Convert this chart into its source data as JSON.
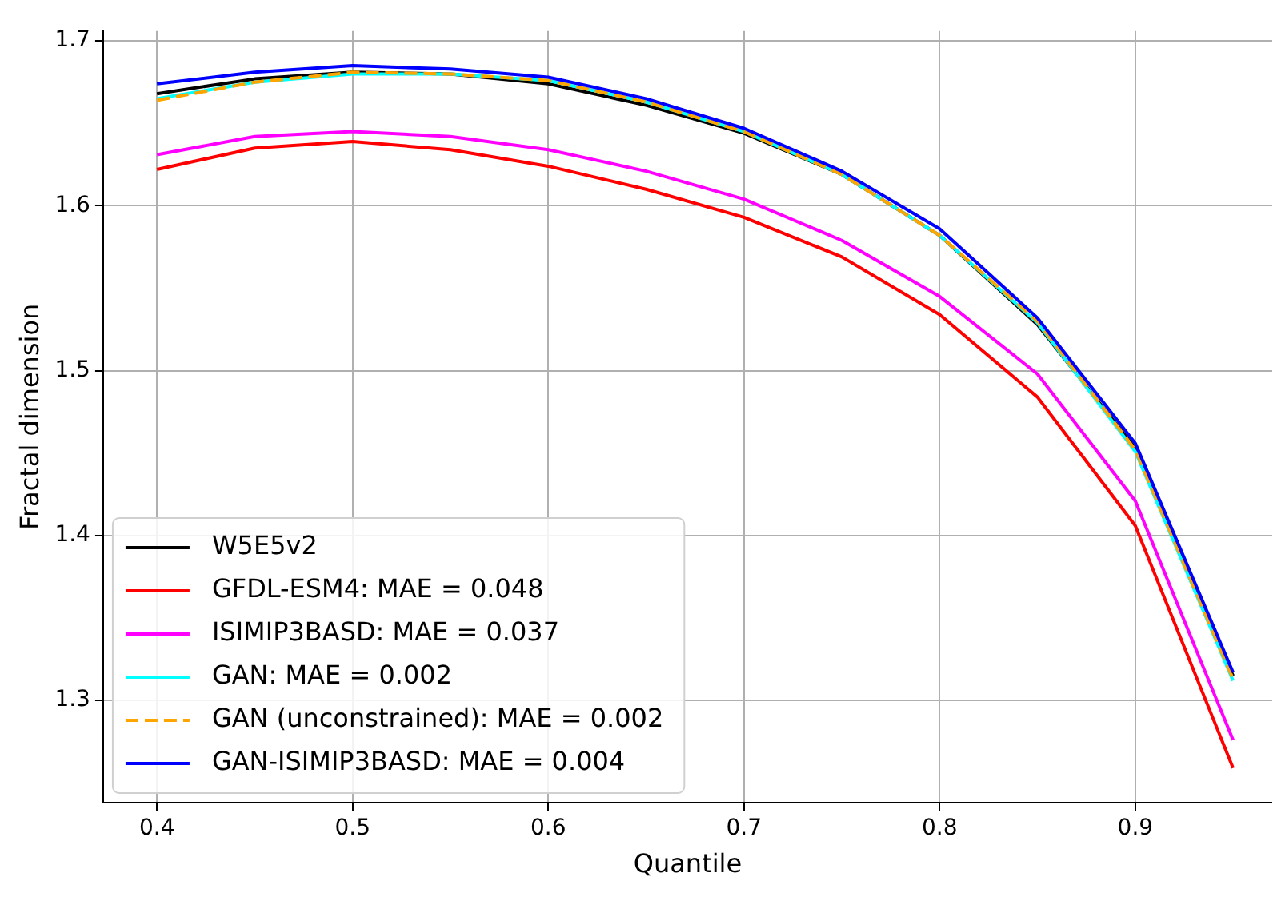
{
  "chart_data": {
    "type": "line",
    "xlabel": "Quantile",
    "ylabel": "Fractal dimension",
    "x": [
      0.4,
      0.45,
      0.5,
      0.55,
      0.6,
      0.65,
      0.7,
      0.75,
      0.8,
      0.85,
      0.9,
      0.95
    ],
    "xlim": [
      0.3725,
      0.97
    ],
    "xticks": [
      0.4,
      0.5,
      0.6,
      0.7,
      0.8,
      0.9
    ],
    "ylim": [
      1.238,
      1.706
    ],
    "yticks": [
      1.3,
      1.4,
      1.5,
      1.6,
      1.7
    ],
    "grid": true,
    "legend": "bottom left",
    "marker": "none",
    "series": [
      {
        "name": "W5E5v2",
        "color": "#000000",
        "values": [
          1.668,
          1.677,
          1.681,
          1.68,
          1.674,
          1.661,
          1.644,
          1.619,
          1.582,
          1.528,
          1.453,
          1.315
        ]
      },
      {
        "name": "GFDL-ESM4: MAE = 0.048",
        "color": "#ff0000",
        "values": [
          1.622,
          1.635,
          1.639,
          1.634,
          1.624,
          1.61,
          1.593,
          1.569,
          1.534,
          1.484,
          1.406,
          1.259
        ]
      },
      {
        "name": "ISIMIP3BASD: MAE = 0.037",
        "color": "#ff00ff",
        "values": [
          1.631,
          1.642,
          1.645,
          1.642,
          1.634,
          1.621,
          1.604,
          1.579,
          1.545,
          1.498,
          1.421,
          1.276
        ]
      },
      {
        "name": "GAN: MAE = 0.002",
        "color": "#00ffff",
        "values": [
          1.665,
          1.675,
          1.68,
          1.68,
          1.676,
          1.663,
          1.645,
          1.619,
          1.582,
          1.529,
          1.451,
          1.312
        ]
      },
      {
        "name": "GAN (unconstrained): MAE = 0.002",
        "color": "#ffa500",
        "line_style": "dashed",
        "values": [
          1.664,
          1.675,
          1.681,
          1.68,
          1.676,
          1.663,
          1.645,
          1.619,
          1.582,
          1.53,
          1.452,
          1.313
        ]
      },
      {
        "name": "GAN-ISIMIP3BASD: MAE = 0.004",
        "color": "#0000ff",
        "values": [
          1.674,
          1.681,
          1.685,
          1.683,
          1.678,
          1.665,
          1.647,
          1.621,
          1.586,
          1.532,
          1.456,
          1.317
        ]
      }
    ]
  }
}
